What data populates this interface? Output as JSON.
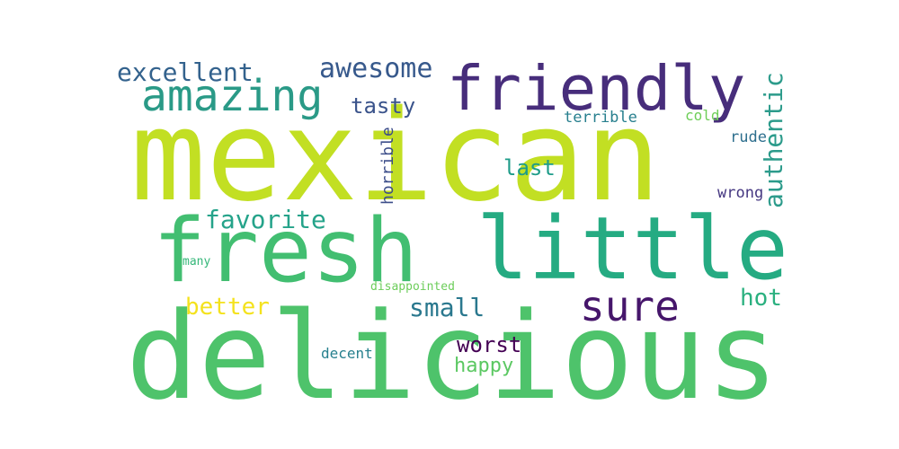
{
  "chart_data": {
    "type": "wordcloud",
    "words": [
      {
        "text": "mexican",
        "weight": 1.0,
        "color": "#c2df23",
        "rotated": false
      },
      {
        "text": "delicious",
        "weight": 0.97,
        "color": "#4ec36b",
        "rotated": false
      },
      {
        "text": "fresh",
        "weight": 0.72,
        "color": "#42be71",
        "rotated": false
      },
      {
        "text": "little",
        "weight": 0.7,
        "color": "#25ab82",
        "rotated": false
      },
      {
        "text": "friendly",
        "weight": 0.5,
        "color": "#472d7b",
        "rotated": false
      },
      {
        "text": "amazing",
        "weight": 0.35,
        "color": "#2a9a87",
        "rotated": false
      },
      {
        "text": "sure",
        "weight": 0.33,
        "color": "#46166b",
        "rotated": false
      },
      {
        "text": "awesome",
        "weight": 0.21,
        "color": "#37598c",
        "rotated": false
      },
      {
        "text": "excellent",
        "weight": 0.2,
        "color": "#33628d",
        "rotated": false
      },
      {
        "text": "favorite",
        "weight": 0.2,
        "color": "#25a38a",
        "rotated": false
      },
      {
        "text": "authentic",
        "weight": 0.2,
        "color": "#2c9b8b",
        "rotated": true
      },
      {
        "text": "small",
        "weight": 0.2,
        "color": "#2a788e",
        "rotated": false
      },
      {
        "text": "better",
        "weight": 0.19,
        "color": "#f4e21d",
        "rotated": false
      },
      {
        "text": "hot",
        "weight": 0.18,
        "color": "#2ab07f",
        "rotated": false
      },
      {
        "text": "tasty",
        "weight": 0.16,
        "color": "#3a538b",
        "rotated": false
      },
      {
        "text": "last",
        "weight": 0.16,
        "color": "#1e9c89",
        "rotated": false
      },
      {
        "text": "worst",
        "weight": 0.16,
        "color": "#440154",
        "rotated": false
      },
      {
        "text": "happy",
        "weight": 0.15,
        "color": "#5bc862",
        "rotated": false
      },
      {
        "text": "horrible",
        "weight": 0.13,
        "color": "#3d4e8a",
        "rotated": true
      },
      {
        "text": "terrible",
        "weight": 0.12,
        "color": "#277f8e",
        "rotated": false
      },
      {
        "text": "rude",
        "weight": 0.11,
        "color": "#2e6f8e",
        "rotated": false
      },
      {
        "text": "wrong",
        "weight": 0.11,
        "color": "#453781",
        "rotated": false
      },
      {
        "text": "cold",
        "weight": 0.1,
        "color": "#6ece58",
        "rotated": false
      },
      {
        "text": "decent",
        "weight": 0.1,
        "color": "#27808e",
        "rotated": false
      },
      {
        "text": "many",
        "weight": 0.08,
        "color": "#35b779",
        "rotated": false
      },
      {
        "text": "disappointed",
        "weight": 0.08,
        "color": "#6ccd5a",
        "rotated": false
      }
    ]
  }
}
